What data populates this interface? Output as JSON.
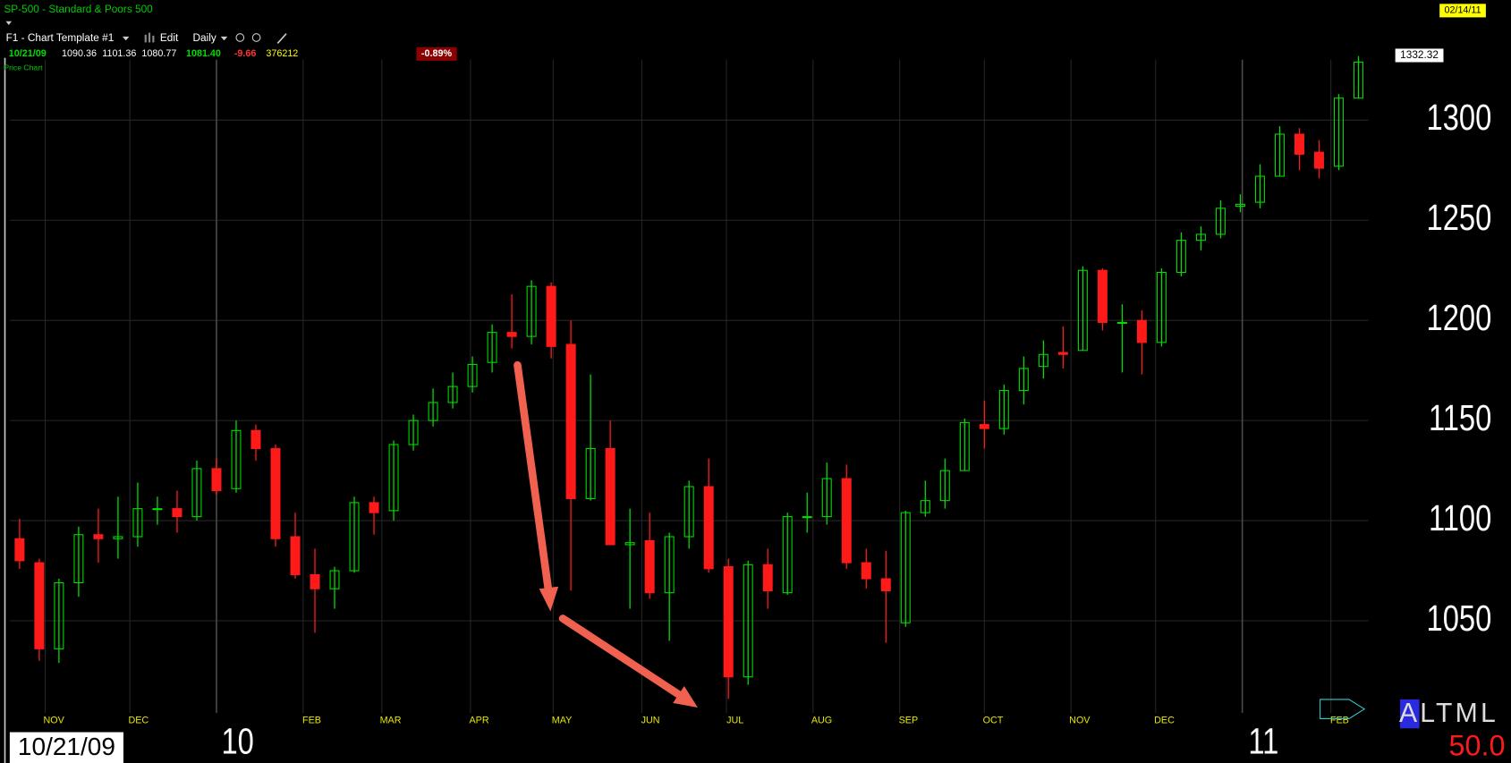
{
  "header": {
    "symbol_title": "SP-500 - Standard & Poors 500",
    "date": "02/14/11",
    "template": "F1 - Chart Template #1",
    "edit": "Edit",
    "interval": "Daily",
    "quote": {
      "date": "10/21/09",
      "open": "1090.36",
      "high": "1101.36",
      "low": "1080.77",
      "close": "1081.40",
      "change": "-9.66",
      "volume": "376212",
      "pct_change": "-0.89%"
    },
    "pane_label": "Price Chart"
  },
  "chart_data": {
    "type": "candlestick",
    "last_price": 1332.32,
    "up_color": "#00dd00",
    "down_color": "#ff1a1a",
    "ylim": [
      1004,
      1360
    ],
    "yticks": [
      1050,
      1100,
      1150,
      1200,
      1250,
      1300
    ],
    "xlim": [
      -0.5,
      68.5
    ],
    "xticks": [
      {
        "value": 1.3,
        "label": "NOV"
      },
      {
        "value": 5.6,
        "label": "DEC"
      },
      {
        "value": 14.4,
        "label": "FEB"
      },
      {
        "value": 18.4,
        "label": "MAR"
      },
      {
        "value": 22.9,
        "label": "APR"
      },
      {
        "value": 27.1,
        "label": "MAY"
      },
      {
        "value": 31.6,
        "label": "JUN"
      },
      {
        "value": 35.9,
        "label": "JUL"
      },
      {
        "value": 40.3,
        "label": "AUG"
      },
      {
        "value": 44.7,
        "label": "SEP"
      },
      {
        "value": 49,
        "label": "OCT"
      },
      {
        "value": 53.4,
        "label": "NOV"
      },
      {
        "value": 57.7,
        "label": "DEC"
      },
      {
        "value": 66.6,
        "label": "FEB"
      }
    ],
    "year_ticks": [
      {
        "value": 10,
        "label": "10"
      },
      {
        "value": 62.1,
        "label": "11"
      }
    ],
    "ohlc": {
      "open": [
        1091,
        1079,
        1036,
        1069,
        1093,
        1091,
        1092,
        1106,
        1106,
        1102,
        1126,
        1116,
        1145,
        1136,
        1092,
        1073,
        1066,
        1075,
        1109,
        1105,
        1138,
        1150,
        1159,
        1167,
        1179,
        1194,
        1192,
        1217,
        1188,
        1111,
        1136,
        1088,
        1090,
        1064,
        1092,
        1117,
        1077,
        1022,
        1078,
        1064,
        1102,
        1102,
        1121,
        1079,
        1071,
        1049,
        1104,
        1110,
        1125,
        1148,
        1146,
        1165,
        1177,
        1184,
        1185,
        1225,
        1199,
        1200,
        1189,
        1224,
        1240,
        1243,
        1257,
        1259,
        1272,
        1293,
        1284,
        1277,
        1311
      ],
      "high": [
        1101,
        1081,
        1071,
        1097,
        1106,
        1112,
        1119,
        1112,
        1115,
        1130,
        1131,
        1150,
        1148,
        1138,
        1104,
        1086,
        1077,
        1112,
        1112,
        1140,
        1153,
        1166,
        1174,
        1182,
        1198,
        1213,
        1220,
        1219,
        1200,
        1173,
        1150,
        1106,
        1104,
        1094,
        1120,
        1131,
        1081,
        1080,
        1086,
        1104,
        1114,
        1129,
        1128,
        1086,
        1085,
        1105,
        1120,
        1131,
        1151,
        1160,
        1168,
        1182,
        1190,
        1197,
        1227,
        1226,
        1208,
        1205,
        1226,
        1244,
        1247,
        1260,
        1263,
        1278,
        1297,
        1296,
        1290,
        1313,
        1332
      ],
      "low": [
        1076,
        1030,
        1029,
        1062,
        1079,
        1081,
        1087,
        1098,
        1094,
        1100,
        1113,
        1114,
        1130,
        1087,
        1071,
        1044,
        1056,
        1074,
        1093,
        1100,
        1135,
        1147,
        1156,
        1164,
        1174,
        1186,
        1188,
        1181,
        1065,
        1110,
        1088,
        1056,
        1061,
        1040,
        1086,
        1074,
        1011,
        1018,
        1056,
        1063,
        1094,
        1098,
        1076,
        1066,
        1039,
        1047,
        1102,
        1106,
        1125,
        1136,
        1143,
        1158,
        1171,
        1176,
        1185,
        1195,
        1174,
        1173,
        1187,
        1222,
        1235,
        1241,
        1254,
        1256,
        1272,
        1275,
        1271,
        1275,
        1311
      ],
      "close": [
        1080,
        1036,
        1069,
        1093,
        1091,
        1092,
        1106,
        1106,
        1102,
        1126,
        1115,
        1145,
        1136,
        1091,
        1073,
        1066,
        1075,
        1109,
        1104,
        1138,
        1150,
        1159,
        1167,
        1178,
        1194,
        1192,
        1217,
        1187,
        1111,
        1136,
        1088,
        1089,
        1064,
        1092,
        1117,
        1076,
        1022,
        1078,
        1065,
        1102,
        1102,
        1121,
        1079,
        1071,
        1065,
        1104,
        1110,
        1125,
        1149,
        1146,
        1165,
        1176,
        1183,
        1183,
        1225,
        1199,
        1199,
        1189,
        1224,
        1240,
        1243,
        1256,
        1258,
        1272,
        1293,
        1283,
        1276,
        1311,
        1329
      ]
    }
  },
  "footer": {
    "cursor_date": "10/21/09",
    "mode": "ALTML",
    "value": "50.0"
  }
}
